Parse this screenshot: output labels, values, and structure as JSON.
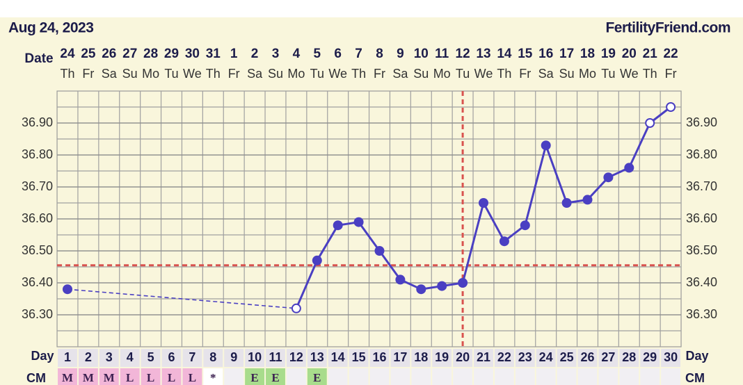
{
  "chart_data": {
    "type": "line",
    "title": "Aug 24, 2023",
    "source": "FertilityFriend.com",
    "date_label": "Date",
    "day_label": "Day",
    "cm_label": "CM",
    "categories": [
      1,
      2,
      3,
      4,
      5,
      6,
      7,
      8,
      9,
      10,
      11,
      12,
      13,
      14,
      15,
      16,
      17,
      18,
      19,
      20,
      21,
      22,
      23,
      24,
      25,
      26,
      27,
      28,
      29,
      30
    ],
    "dates": [
      "24",
      "25",
      "26",
      "27",
      "28",
      "29",
      "30",
      "31",
      "1",
      "2",
      "3",
      "4",
      "5",
      "6",
      "7",
      "8",
      "9",
      "10",
      "11",
      "12",
      "13",
      "14",
      "15",
      "16",
      "17",
      "18",
      "19",
      "20",
      "21",
      "22"
    ],
    "weekdays": [
      "Th",
      "Fr",
      "Sa",
      "Su",
      "Mo",
      "Tu",
      "We",
      "Th",
      "Fr",
      "Sa",
      "Su",
      "Mo",
      "Tu",
      "We",
      "Th",
      "Fr",
      "Sa",
      "Su",
      "Mo",
      "Tu",
      "We",
      "Th",
      "Fr",
      "Sa",
      "Su",
      "Mo",
      "Tu",
      "We",
      "Th",
      "Fr"
    ],
    "values": [
      36.38,
      null,
      null,
      null,
      null,
      null,
      null,
      null,
      null,
      null,
      null,
      36.32,
      36.47,
      36.58,
      36.59,
      36.5,
      36.41,
      36.38,
      36.39,
      36.4,
      36.65,
      36.53,
      36.58,
      36.83,
      36.65,
      36.66,
      36.73,
      36.76,
      36.9,
      36.95
    ],
    "markers": [
      "filled",
      null,
      null,
      null,
      null,
      null,
      null,
      null,
      null,
      null,
      null,
      "open",
      "filled",
      "filled",
      "filled",
      "filled",
      "filled",
      "filled",
      "filled",
      "filled",
      "filled",
      "filled",
      "filled",
      "filled",
      "filled",
      "filled",
      "filled",
      "filled",
      "open",
      "open"
    ],
    "color": "#4a3fc2",
    "coverline": 36.455,
    "ovulation_day": 20,
    "marker_line_color": "#d9534f",
    "cm": [
      "M",
      "M",
      "M",
      "L",
      "L",
      "L",
      "L",
      "*",
      null,
      "E",
      "E",
      null,
      "E",
      null,
      null,
      null,
      null,
      null,
      null,
      null,
      null,
      null,
      null,
      null,
      null,
      null,
      null,
      null,
      null,
      null
    ],
    "cm_colors": {
      "M": "#f2b6d8",
      "L": "#f2b6d8",
      "E": "#a8dc8c",
      "*": "#ffffff"
    },
    "ylim": [
      36.2,
      37.0
    ],
    "yticks": [
      {
        "value": 36.3,
        "label": "36.30"
      },
      {
        "value": 36.4,
        "label": "36.40"
      },
      {
        "value": 36.5,
        "label": "36.50"
      },
      {
        "value": 36.6,
        "label": "36.60"
      },
      {
        "value": 36.7,
        "label": "36.70"
      },
      {
        "value": 36.8,
        "label": "36.80"
      },
      {
        "value": 36.9,
        "label": "36.90"
      }
    ],
    "grid": true
  }
}
